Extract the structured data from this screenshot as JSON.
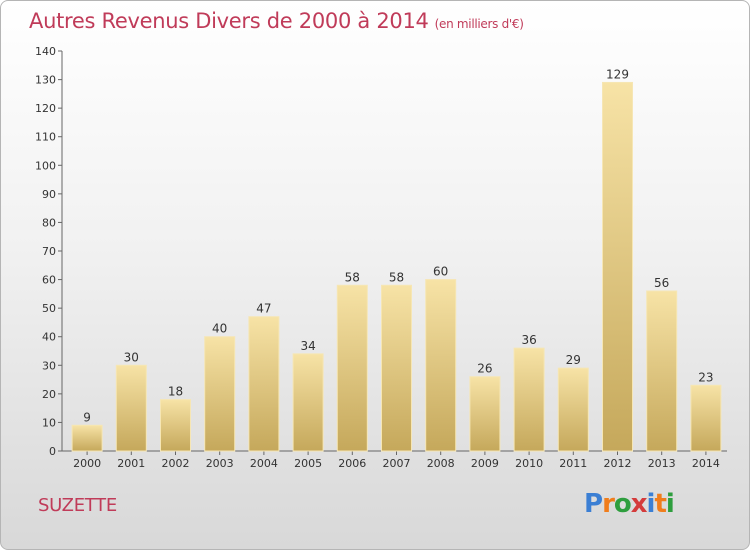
{
  "title": "Autres Revenus Divers de 2000 à 2014",
  "subtitle": "(en milliers d'€)",
  "commune": "SUZETTE",
  "logo": {
    "text": "Proxiti",
    "colors": [
      "#3b7fd4",
      "#f07d1c",
      "#2e9e3e",
      "#d43b3b",
      "#3b7fd4",
      "#f07d1c",
      "#2e9e3e"
    ]
  },
  "colors": {
    "title": "#c03b59",
    "bar_light": "#f5df9e",
    "bar_dark": "#c8ab5e",
    "axis": "#555555"
  },
  "chart_data": {
    "type": "bar",
    "categories": [
      "2000",
      "2001",
      "2002",
      "2003",
      "2004",
      "2005",
      "2006",
      "2007",
      "2008",
      "2009",
      "2010",
      "2011",
      "2012",
      "2013",
      "2014"
    ],
    "values": [
      9,
      30,
      18,
      40,
      47,
      34,
      58,
      58,
      60,
      26,
      36,
      29,
      129,
      56,
      23
    ],
    "ylim": [
      0,
      140
    ],
    "yticks": [
      0,
      10,
      20,
      30,
      40,
      50,
      60,
      70,
      80,
      90,
      100,
      110,
      120,
      130,
      140
    ],
    "grid": false,
    "data_labels": true
  }
}
